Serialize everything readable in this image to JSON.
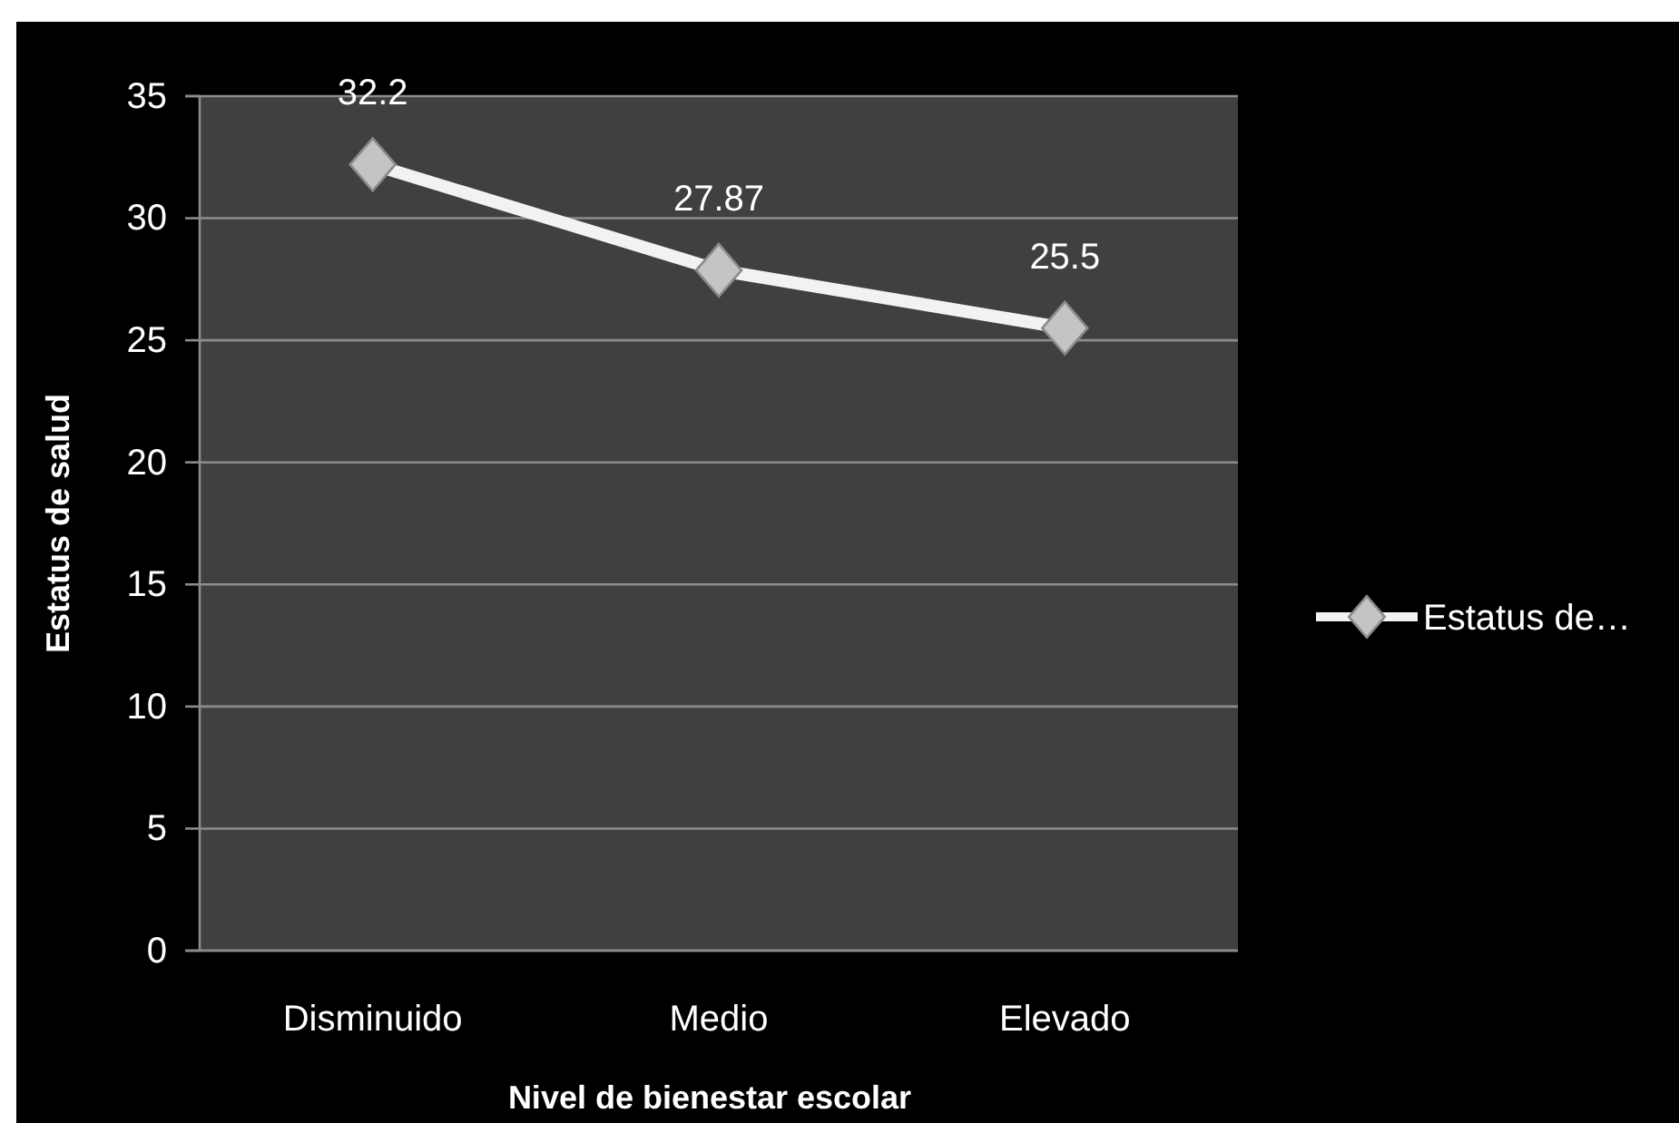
{
  "chart_data": {
    "type": "line",
    "xlabel": "Nivel de bienestar escolar",
    "ylabel": "Estatus de salud",
    "categories": [
      "Disminuido",
      "Medio",
      "Elevado"
    ],
    "series": [
      {
        "name": "Estatus de…",
        "color": "#f2f2f2",
        "values": [
          32.2,
          27.87,
          25.5
        ]
      }
    ],
    "ylim": [
      0,
      35
    ],
    "yticks": [
      0,
      5,
      10,
      15,
      20,
      25,
      30,
      35
    ],
    "grid": "y",
    "legend": "right",
    "marker": "diamond",
    "data_labels": true
  }
}
